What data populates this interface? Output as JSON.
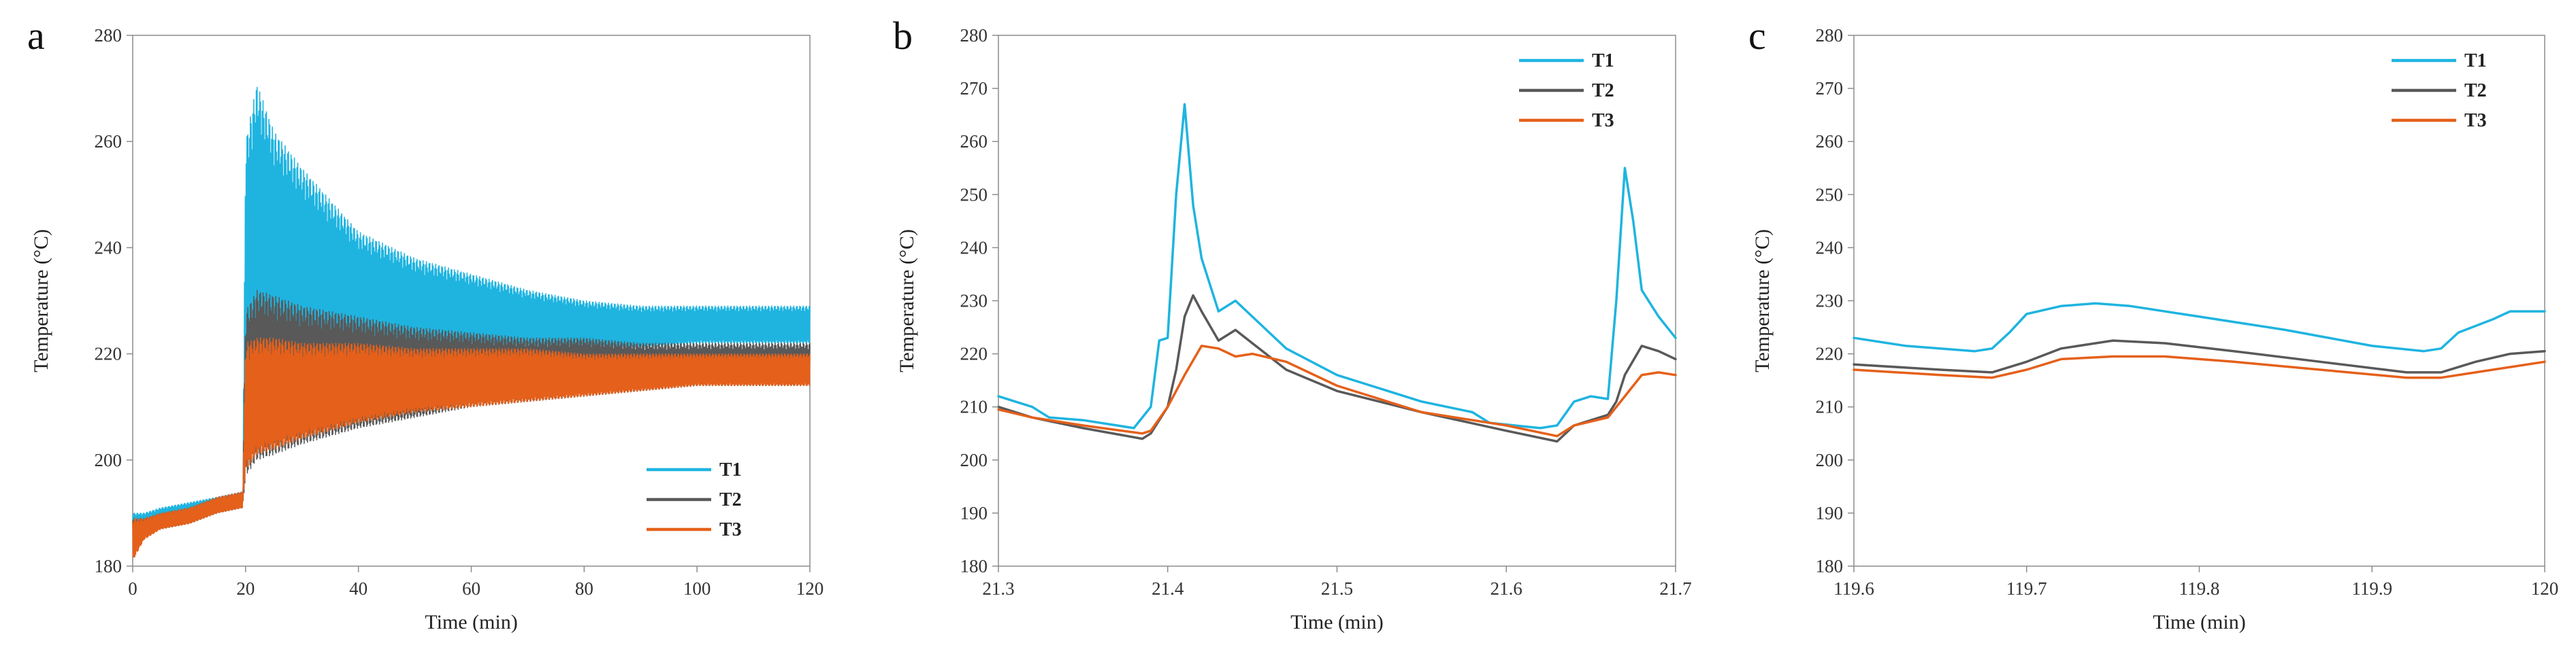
{
  "colors": {
    "T1": "#1fb4e0",
    "T2": "#595959",
    "T3": "#e5601a"
  },
  "chart_data": [
    {
      "type": "line",
      "panel_label": "a",
      "xlabel": "Time (min)",
      "ylabel": "Temperature (°C)",
      "xlim": [
        0,
        120
      ],
      "ylim": [
        180,
        280
      ],
      "x_ticks": [
        0,
        20,
        40,
        60,
        80,
        100,
        120
      ],
      "x_tick_labels": [
        "0",
        "20",
        "40",
        "60",
        "80",
        "100",
        "120"
      ],
      "y_ticks": [
        180,
        200,
        220,
        240,
        260,
        280
      ],
      "y_tick_labels": [
        "180",
        "200",
        "220",
        "240",
        "260",
        "280"
      ],
      "legend_position": "bottom-right",
      "render": "band",
      "series": [
        {
          "name": "T1",
          "x": [
            0,
            2,
            5,
            10,
            15,
            19.5,
            20,
            22,
            25,
            30,
            40,
            50,
            60,
            70,
            80,
            90,
            100,
            110,
            120
          ],
          "upper": [
            190,
            190,
            191,
            192,
            193,
            194,
            260,
            271,
            262,
            255,
            243,
            238,
            235,
            232,
            230,
            229,
            229,
            229,
            229
          ],
          "lower": [
            186,
            187,
            188,
            189,
            191,
            192,
            212,
            217,
            218,
            219,
            220,
            220,
            221,
            221,
            221,
            221,
            222,
            222,
            222
          ]
        },
        {
          "name": "T2",
          "x": [
            0,
            2,
            5,
            10,
            15,
            19.5,
            20,
            22,
            25,
            30,
            40,
            50,
            60,
            70,
            80,
            90,
            100,
            110,
            120
          ],
          "upper": [
            189,
            189,
            190,
            191,
            193,
            194,
            228,
            232,
            231,
            229,
            227,
            225,
            224,
            223,
            223,
            222,
            222,
            222,
            222
          ],
          "lower": [
            185,
            186,
            187,
            188,
            190,
            191,
            197,
            200,
            201,
            203,
            206,
            208,
            210,
            211,
            212,
            213,
            214,
            214,
            214
          ]
        },
        {
          "name": "T3",
          "x": [
            0,
            2,
            5,
            10,
            15,
            19.5,
            20,
            22,
            25,
            30,
            40,
            50,
            60,
            70,
            80,
            90,
            100,
            110,
            120
          ],
          "upper": [
            189,
            189,
            190,
            191,
            193,
            194,
            222,
            223,
            223,
            222,
            222,
            221,
            221,
            221,
            220,
            220,
            220,
            220,
            220
          ],
          "lower": [
            181,
            185,
            187,
            188,
            190,
            191,
            198,
            201,
            202,
            204,
            207,
            209,
            210,
            211,
            212,
            213,
            214,
            214,
            214
          ]
        }
      ]
    },
    {
      "type": "line",
      "panel_label": "b",
      "xlabel": "Time (min)",
      "ylabel": "Temperature (°C)",
      "xlim": [
        21.3,
        21.7
      ],
      "ylim": [
        180,
        280
      ],
      "x_ticks": [
        21.3,
        21.4,
        21.5,
        21.6,
        21.7
      ],
      "x_tick_labels": [
        "21.3",
        "21.4",
        "21.5",
        "21.6",
        "21.7"
      ],
      "y_ticks": [
        180,
        190,
        200,
        210,
        220,
        230,
        240,
        250,
        260,
        270,
        280
      ],
      "y_tick_labels": [
        "180",
        "190",
        "200",
        "210",
        "220",
        "230",
        "240",
        "250",
        "260",
        "270",
        "280"
      ],
      "legend_position": "top-right",
      "render": "line",
      "series": [
        {
          "name": "T1",
          "x": [
            21.3,
            21.32,
            21.33,
            21.35,
            21.38,
            21.39,
            21.395,
            21.4,
            21.405,
            21.41,
            21.415,
            21.42,
            21.43,
            21.44,
            21.45,
            21.47,
            21.5,
            21.55,
            21.58,
            21.59,
            21.62,
            21.63,
            21.64,
            21.65,
            21.66,
            21.665,
            21.67,
            21.675,
            21.68,
            21.69,
            21.7
          ],
          "y": [
            212,
            210,
            208,
            207.5,
            206,
            210,
            222.5,
            223,
            250,
            267,
            248,
            238,
            228,
            230,
            227,
            221,
            216,
            211,
            209,
            207,
            206,
            206.5,
            211,
            212,
            211.5,
            230,
            255,
            245,
            232,
            227,
            223
          ]
        },
        {
          "name": "T2",
          "x": [
            21.3,
            21.32,
            21.35,
            21.385,
            21.39,
            21.4,
            21.405,
            21.41,
            21.415,
            21.42,
            21.43,
            21.44,
            21.45,
            21.47,
            21.5,
            21.55,
            21.6,
            21.63,
            21.64,
            21.66,
            21.665,
            21.67,
            21.68,
            21.69,
            21.7
          ],
          "y": [
            210,
            208,
            206,
            204,
            205,
            210,
            217,
            227,
            231,
            228,
            222.5,
            224.5,
            222,
            217,
            213,
            209,
            205.5,
            203.5,
            206.5,
            208.5,
            211,
            216,
            221.5,
            220.5,
            219
          ]
        },
        {
          "name": "T3",
          "x": [
            21.3,
            21.32,
            21.35,
            21.385,
            21.39,
            21.4,
            21.41,
            21.42,
            21.43,
            21.44,
            21.45,
            21.47,
            21.5,
            21.55,
            21.6,
            21.63,
            21.64,
            21.66,
            21.67,
            21.68,
            21.69,
            21.7
          ],
          "y": [
            209.5,
            208,
            206.5,
            205,
            205.5,
            210,
            216,
            221.5,
            221,
            219.5,
            220,
            218.5,
            214,
            209,
            206.5,
            204.5,
            206.5,
            208,
            212,
            216,
            216.5,
            216
          ]
        }
      ]
    },
    {
      "type": "line",
      "panel_label": "c",
      "xlabel": "Time (min)",
      "ylabel": "Temperature (°C)",
      "xlim": [
        119.6,
        120
      ],
      "ylim": [
        180,
        280
      ],
      "x_ticks": [
        119.6,
        119.7,
        119.8,
        119.9,
        120
      ],
      "x_tick_labels": [
        "119.6",
        "119.7",
        "119.8",
        "119.9",
        "120"
      ],
      "y_ticks": [
        180,
        190,
        200,
        210,
        220,
        230,
        240,
        250,
        260,
        270,
        280
      ],
      "y_tick_labels": [
        "180",
        "190",
        "200",
        "210",
        "220",
        "230",
        "240",
        "250",
        "260",
        "270",
        "280"
      ],
      "legend_position": "top-right",
      "render": "line",
      "series": [
        {
          "name": "T1",
          "x": [
            119.6,
            119.63,
            119.67,
            119.68,
            119.69,
            119.7,
            119.72,
            119.74,
            119.76,
            119.8,
            119.85,
            119.9,
            119.93,
            119.94,
            119.95,
            119.97,
            119.98,
            120
          ],
          "y": [
            223,
            221.5,
            220.5,
            221,
            224,
            227.5,
            229,
            229.5,
            229,
            227,
            224.5,
            221.5,
            220.5,
            221,
            224,
            226.5,
            228,
            228
          ]
        },
        {
          "name": "T2",
          "x": [
            119.6,
            119.65,
            119.68,
            119.7,
            119.72,
            119.75,
            119.78,
            119.82,
            119.87,
            119.92,
            119.94,
            119.96,
            119.98,
            120
          ],
          "y": [
            218,
            217,
            216.5,
            218.5,
            221,
            222.5,
            222,
            220.5,
            218.5,
            216.5,
            216.5,
            218.5,
            220,
            220.5
          ]
        },
        {
          "name": "T3",
          "x": [
            119.6,
            119.65,
            119.68,
            119.7,
            119.72,
            119.75,
            119.78,
            119.82,
            119.87,
            119.92,
            119.94,
            119.96,
            119.98,
            120
          ],
          "y": [
            217,
            216,
            215.5,
            217,
            219,
            219.5,
            219.5,
            218.5,
            217,
            215.5,
            215.5,
            216.5,
            217.5,
            218.5
          ]
        }
      ]
    }
  ]
}
